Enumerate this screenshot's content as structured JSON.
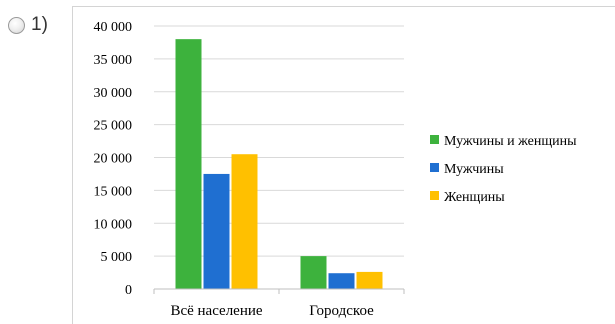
{
  "question": {
    "option_number": "1)"
  },
  "chart_data": {
    "type": "bar",
    "categories": [
      "Всё население",
      "Городское"
    ],
    "series": [
      {
        "name": "Мужчины и женщины",
        "values": [
          38000,
          5000
        ],
        "color": "#3db23d"
      },
      {
        "name": "Мужчины",
        "values": [
          17500,
          2400
        ],
        "color": "#1f6fd1"
      },
      {
        "name": "Женщины",
        "values": [
          20500,
          2600
        ],
        "color": "#ffc000"
      }
    ],
    "ylim": [
      0,
      40000
    ],
    "yticks": [
      0,
      5000,
      10000,
      15000,
      20000,
      25000,
      30000,
      35000,
      40000
    ],
    "ytick_labels": [
      "0",
      "5 000",
      "10 000",
      "15 000",
      "20 000",
      "25 000",
      "30 000",
      "35 000",
      "40 000"
    ],
    "grid": true,
    "legend_position": "right",
    "title": "",
    "xlabel": "",
    "ylabel": ""
  }
}
